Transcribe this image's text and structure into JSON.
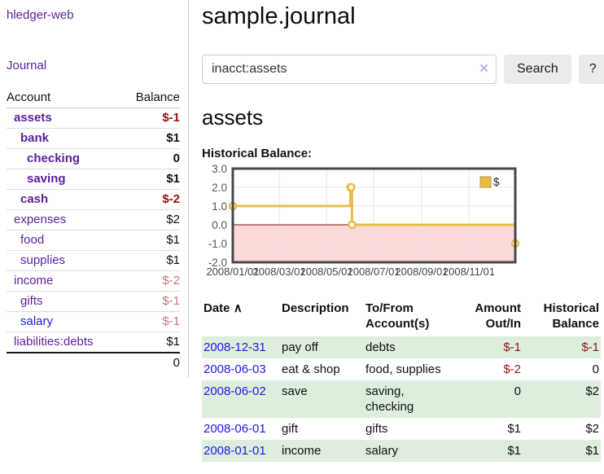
{
  "app": {
    "title": "hledger-web",
    "nav_journal": "Journal"
  },
  "sidebar": {
    "headers": {
      "account": "Account",
      "balance": "Balance"
    },
    "rows": [
      {
        "account": "assets",
        "depth": 1,
        "bold": true,
        "balance": "$-1",
        "balance_style": "neg-strong"
      },
      {
        "account": "bank",
        "depth": 2,
        "bold": true,
        "balance": "$1",
        "balance_style": "pos-strong"
      },
      {
        "account": "checking",
        "depth": 3,
        "bold": true,
        "balance": "0",
        "balance_style": "pos-strong"
      },
      {
        "account": "saving",
        "depth": 3,
        "bold": true,
        "balance": "$1",
        "balance_style": "pos-strong"
      },
      {
        "account": "cash",
        "depth": 2,
        "bold": true,
        "balance": "$-2",
        "balance_style": "neg-strong"
      },
      {
        "account": "expenses",
        "depth": 1,
        "bold": false,
        "balance": "$2",
        "balance_style": "pos"
      },
      {
        "account": "food",
        "depth": 2,
        "bold": false,
        "balance": "$1",
        "balance_style": "pos"
      },
      {
        "account": "supplies",
        "depth": 2,
        "bold": false,
        "balance": "$1",
        "balance_style": "pos"
      },
      {
        "account": "income",
        "depth": 1,
        "bold": false,
        "balance": "$-2",
        "balance_style": "neg-muted"
      },
      {
        "account": "gifts",
        "depth": 2,
        "bold": false,
        "balance": "$-1",
        "balance_style": "neg-muted"
      },
      {
        "account": "salary",
        "depth": 2,
        "bold": false,
        "link_color": "blue",
        "balance": "$-1",
        "balance_style": "neg-muted"
      },
      {
        "account": "liabilities:debts",
        "depth": 1,
        "bold": false,
        "balance": "$1",
        "balance_style": "pos"
      }
    ],
    "total": "0"
  },
  "header": {
    "title": "sample.journal"
  },
  "search": {
    "value": "inacct:assets",
    "clear_icon": "✕",
    "button_label": "Search",
    "help_label": "?"
  },
  "account_page": {
    "heading": "assets",
    "chart_label": "Historical Balance:"
  },
  "chart_data": {
    "type": "line",
    "style": "step",
    "title": "Historical Balance",
    "legend_position": "top-right",
    "series": [
      {
        "name": "$",
        "color": "#e7bd47",
        "points": [
          {
            "date": "2008-01-01",
            "day": 0,
            "balance": 1
          },
          {
            "date": "2008-06-01",
            "day": 152,
            "balance": 2
          },
          {
            "date": "2008-06-02",
            "day": 153,
            "balance": 2
          },
          {
            "date": "2008-06-03",
            "day": 154,
            "balance": 0
          },
          {
            "date": "2008-12-31",
            "day": 365,
            "balance": -1
          }
        ]
      }
    ],
    "x_ticks": [
      {
        "label": "2008/01/01",
        "day": 0
      },
      {
        "label": "2008/03/01",
        "day": 60
      },
      {
        "label": "2008/05/01",
        "day": 121
      },
      {
        "label": "2008/07/01",
        "day": 182
      },
      {
        "label": "2008/09/01",
        "day": 244
      },
      {
        "label": "2008/11/01",
        "day": 305
      }
    ],
    "x_range_days": [
      0,
      365
    ],
    "y_ticks": [
      3.0,
      2.0,
      1.0,
      0.0,
      -1.0,
      -2.0
    ],
    "y_range": [
      -2,
      3
    ],
    "grid": true,
    "negative_region_color": "#fcdada",
    "zero_line_color": "#8b0000",
    "border_color": "#474747",
    "grid_color": "#e7e7e7"
  },
  "register": {
    "headers": {
      "date": "Date",
      "date_sort_icon": "∧",
      "description": "Description",
      "accounts": "To/From Account(s)",
      "amount": "Amount Out/In",
      "balance": "Historical Balance"
    },
    "rows": [
      {
        "date": "2008-12-31",
        "description": "pay off",
        "accounts": "debts",
        "amount": "$-1",
        "amount_neg": true,
        "balance": "$-1",
        "balance_neg": true
      },
      {
        "date": "2008-06-03",
        "description": "eat & shop",
        "accounts": "food, supplies",
        "amount": "$-2",
        "amount_neg": true,
        "balance": "0",
        "balance_neg": false
      },
      {
        "date": "2008-06-02",
        "description": "save",
        "accounts": "saving, checking",
        "amount": "0",
        "amount_neg": false,
        "balance": "$2",
        "balance_neg": false
      },
      {
        "date": "2008-06-01",
        "description": "gift",
        "accounts": "gifts",
        "amount": "$1",
        "amount_neg": false,
        "balance": "$2",
        "balance_neg": false
      },
      {
        "date": "2008-01-01",
        "description": "income",
        "accounts": "salary",
        "amount": "$1",
        "amount_neg": false,
        "balance": "$1",
        "balance_neg": false
      }
    ]
  }
}
